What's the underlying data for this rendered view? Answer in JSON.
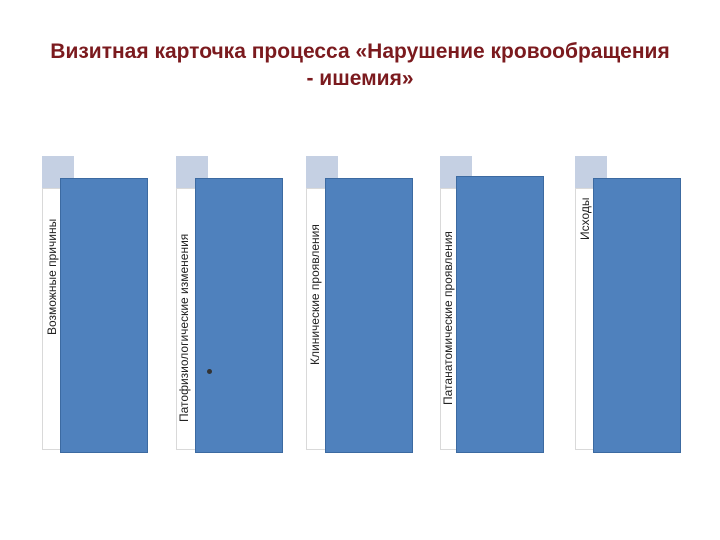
{
  "title": {
    "line1": "Визитная карточка процесса «Нарушение кровообращения",
    "line2": "- ишемия»"
  },
  "columns": [
    {
      "label": "Возможные причины"
    },
    {
      "label": "Патофизиологические изменения"
    },
    {
      "label": "Клинические проявления"
    },
    {
      "label": "Патанатомические проявления"
    },
    {
      "label": "Исходы"
    }
  ],
  "colors": {
    "title": "#7b1a1e",
    "bar": "#4f81bd",
    "tab": "#c5d0e3"
  },
  "icons": {
    "bullet": "bullet-dot-icon"
  }
}
